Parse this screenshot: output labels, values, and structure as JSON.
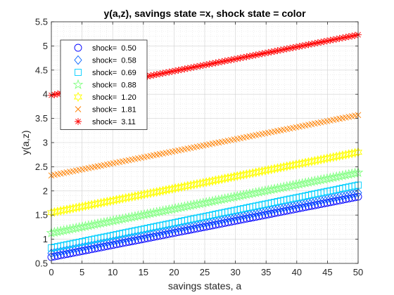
{
  "chart_data": {
    "type": "scatter",
    "title": "y(a,z), savings state =x, shock state = color",
    "xlabel": "savings states, a",
    "ylabel": "y(a,z)",
    "xlim": [
      0,
      50
    ],
    "ylim": [
      0.5,
      5.5
    ],
    "xticks": [
      "0",
      "5",
      "10",
      "15",
      "20",
      "25",
      "30",
      "35",
      "40",
      "45",
      "50"
    ],
    "yticks": [
      "0.5",
      "1",
      "1.5",
      "2",
      "2.5",
      "3",
      "3.5",
      "4",
      "4.5",
      "5",
      "5.5"
    ],
    "grid": "minor-dotted",
    "legend_position": "top-left",
    "a_points": 100,
    "series": [
      {
        "name": "shock=  0.50",
        "marker": "circle",
        "color": "#0000ff",
        "y_start": 0.63,
        "y_end": 1.88
      },
      {
        "name": "shock=  0.58",
        "marker": "diamond",
        "color": "#0060ff",
        "y_start": 0.71,
        "y_end": 1.96
      },
      {
        "name": "shock=  0.69",
        "marker": "square",
        "color": "#00cfff",
        "y_start": 0.82,
        "y_end": 2.12
      },
      {
        "name": "shock=  0.88",
        "marker": "pentagram",
        "color": "#80ff80",
        "y_start": 1.13,
        "y_end": 2.38
      },
      {
        "name": "shock=  1.20",
        "marker": "hexagram",
        "color": "#ffff00",
        "y_start": 1.55,
        "y_end": 2.8
      },
      {
        "name": "shock=  1.81",
        "marker": "x",
        "color": "#ff8000",
        "y_start": 2.32,
        "y_end": 3.57
      },
      {
        "name": "shock=  3.11",
        "marker": "star",
        "color": "#ff0000",
        "y_start": 3.98,
        "y_end": 5.23
      }
    ]
  }
}
